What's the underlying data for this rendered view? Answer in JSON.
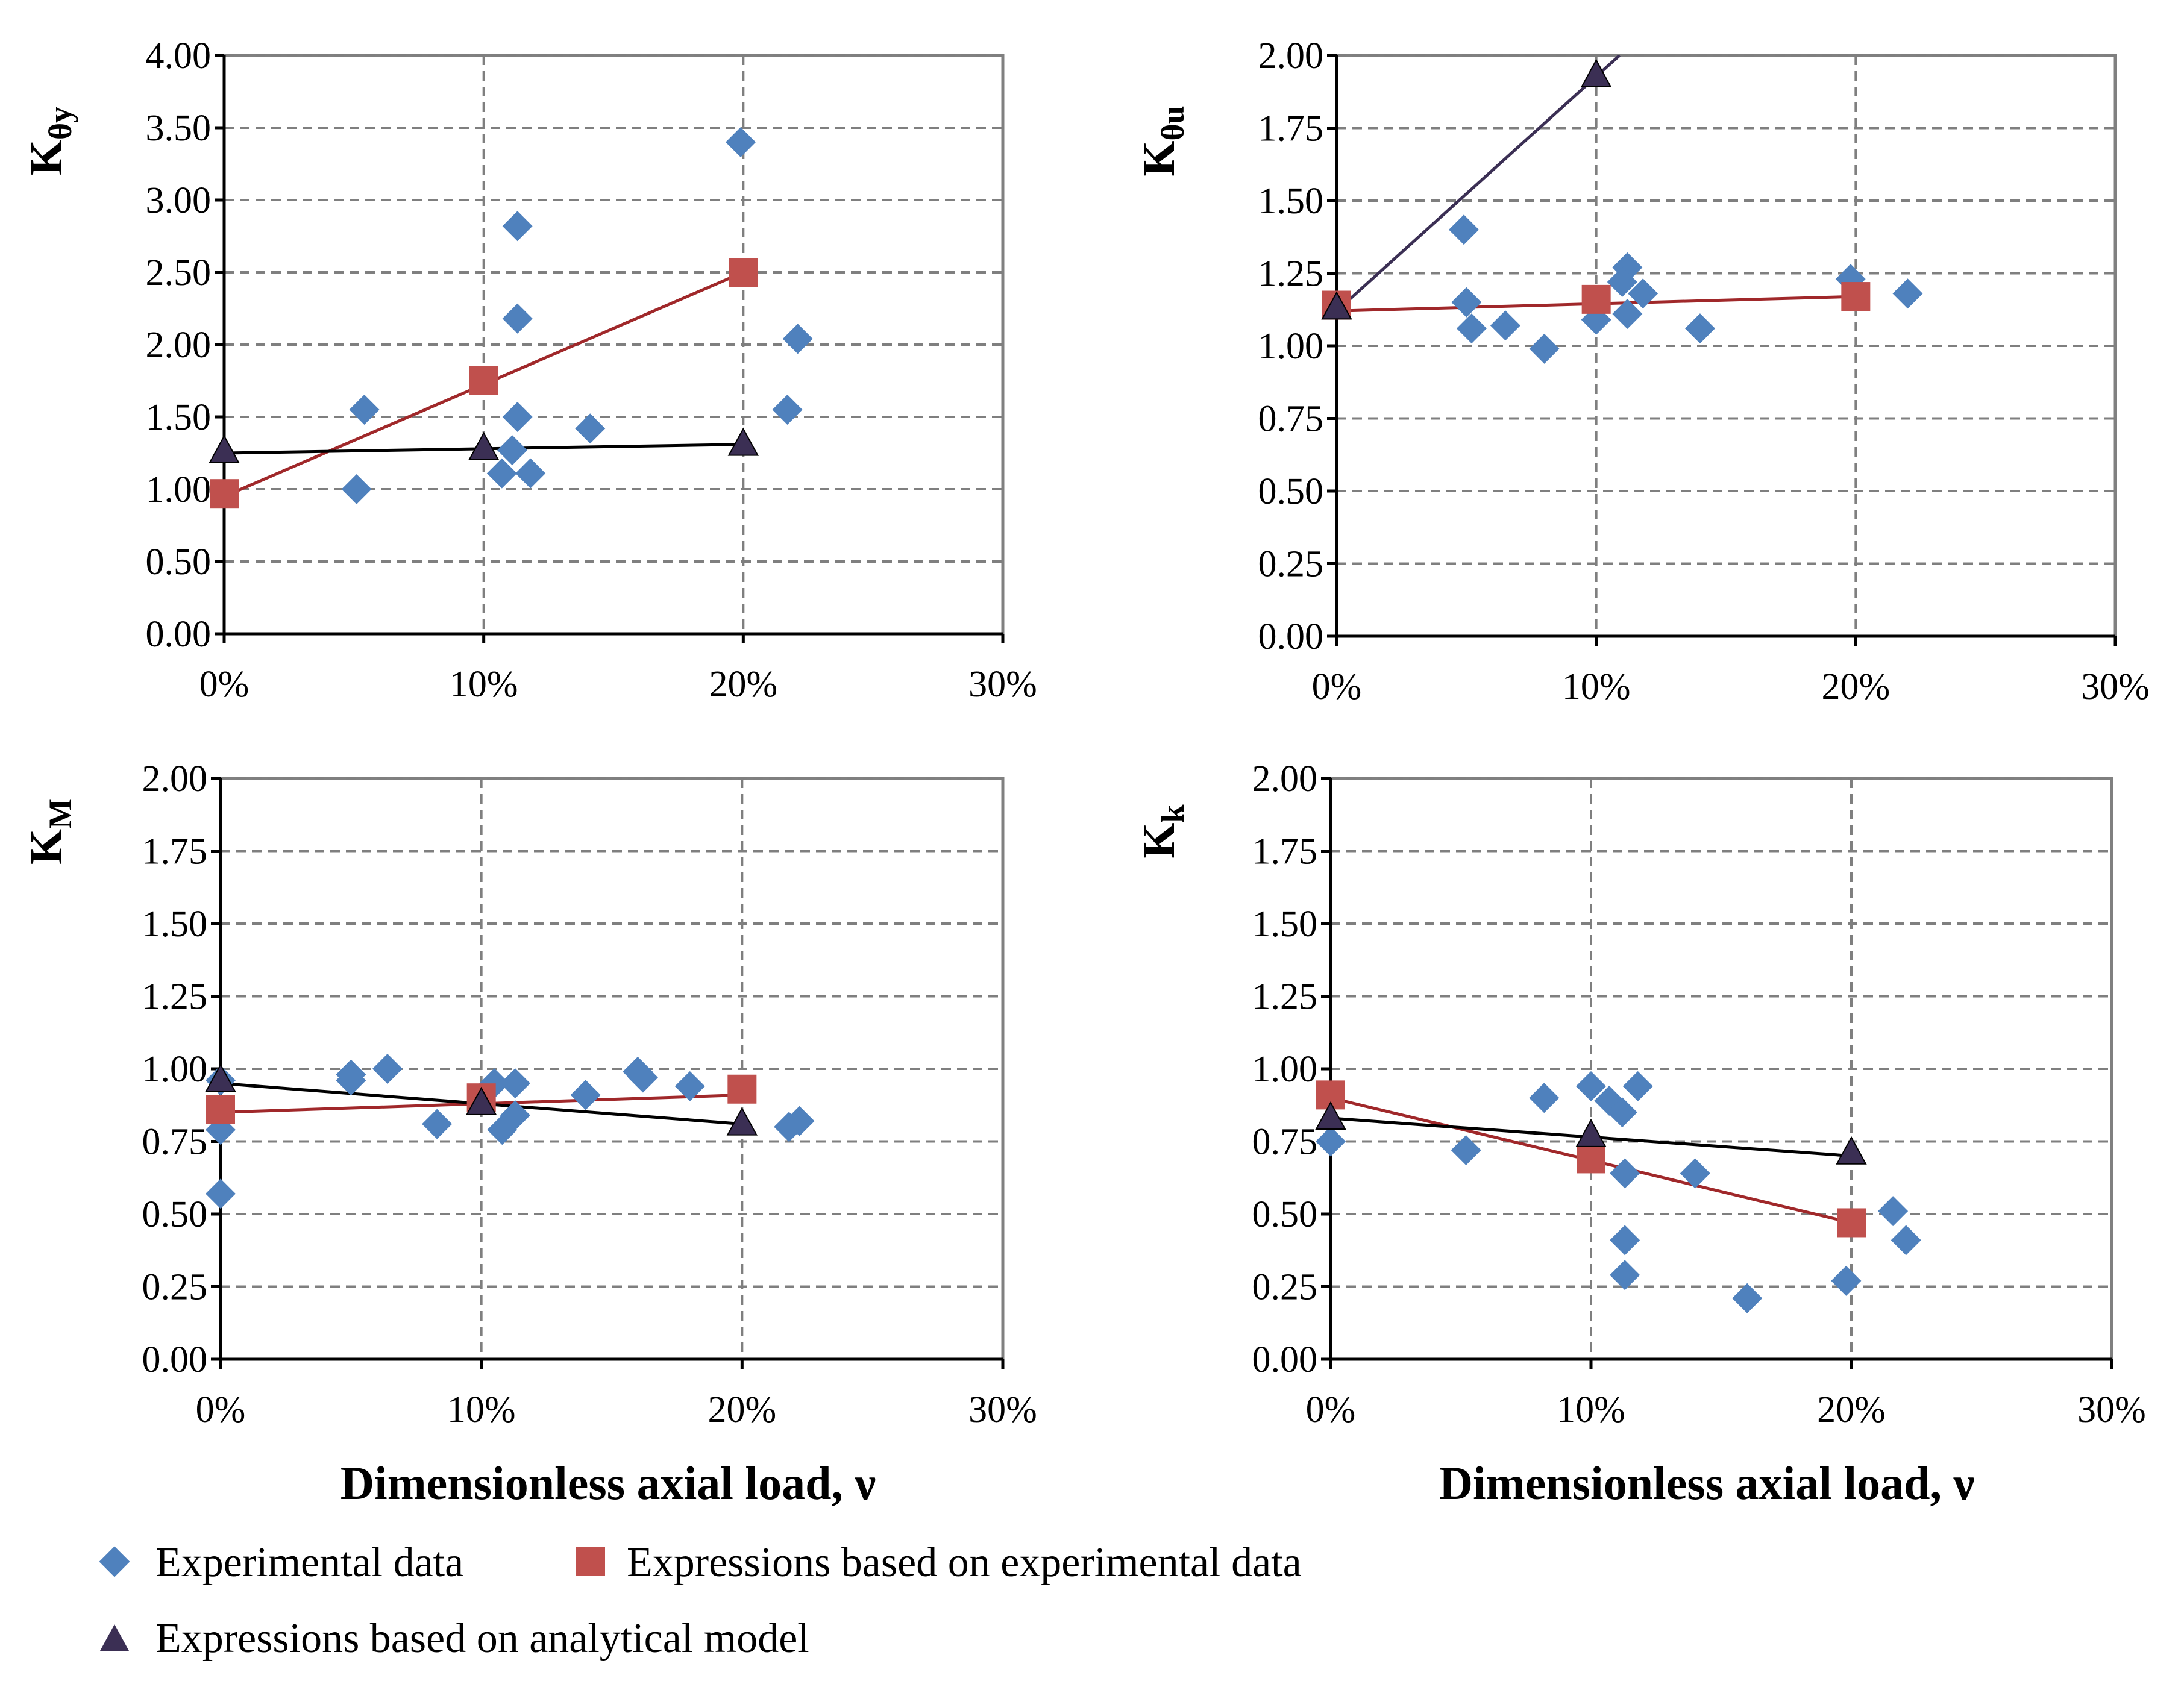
{
  "colors": {
    "experimental": "#4f81bd",
    "expr_experimental": "#c0504d",
    "expr_analytical": "#3b2f54",
    "line_experimental": "#a0282a",
    "line_analytical": "#000000"
  },
  "xlabel": "Dimensionless axial load, ν",
  "legend": {
    "experimental": "Experimental data",
    "expr_experimental": "Expressions based on experimental data",
    "expr_analytical": "Expressions based on analytical model"
  },
  "chart_data": [
    {
      "type": "scatter",
      "ylabel_main": "K",
      "ylabel_sub": "θy",
      "ylim": [
        0,
        4
      ],
      "ytick_values": [
        0,
        0.5,
        1,
        1.5,
        2,
        2.5,
        3,
        3.5,
        4
      ],
      "ytick_labels": [
        "0.00",
        "0.50",
        "1.00",
        "1.50",
        "2.00",
        "2.50",
        "3.00",
        "3.50",
        "4.00"
      ],
      "xlim": [
        0,
        0.3
      ],
      "xtick_values": [
        0,
        0.1,
        0.2,
        0.3
      ],
      "xtick_labels": [
        "0%",
        "10%",
        "20%",
        "30%"
      ],
      "experimental": [
        [
          0.054,
          1.55
        ],
        [
          0.051,
          1.0
        ],
        [
          0.113,
          2.82
        ],
        [
          0.113,
          2.18
        ],
        [
          0.113,
          1.5
        ],
        [
          0.111,
          1.27
        ],
        [
          0.107,
          1.11
        ],
        [
          0.118,
          1.11
        ],
        [
          0.141,
          1.42
        ],
        [
          0.199,
          3.4
        ],
        [
          0.221,
          2.04
        ],
        [
          0.217,
          1.55
        ]
      ],
      "expr_experimental": [
        [
          0.0,
          0.97
        ],
        [
          0.1,
          1.75
        ],
        [
          0.2,
          2.5
        ]
      ],
      "expr_experimental_line": [
        [
          0.0,
          0.95
        ],
        [
          0.2,
          2.5
        ]
      ],
      "expr_analytical": [
        [
          0.0,
          1.26
        ],
        [
          0.1,
          1.28
        ],
        [
          0.2,
          1.31
        ]
      ],
      "expr_analytical_line": [
        [
          0.0,
          1.25
        ],
        [
          0.2,
          1.31
        ]
      ]
    },
    {
      "type": "scatter",
      "ylabel_main": "K",
      "ylabel_sub": "θu",
      "ylim": [
        0,
        2
      ],
      "ytick_values": [
        0,
        0.25,
        0.5,
        0.75,
        1,
        1.25,
        1.5,
        1.75,
        2
      ],
      "ytick_labels": [
        "0.00",
        "0.25",
        "0.50",
        "0.75",
        "1.00",
        "1.25",
        "1.50",
        "1.75",
        "2.00"
      ],
      "xlim": [
        0,
        0.3
      ],
      "xtick_values": [
        0,
        0.1,
        0.2,
        0.3
      ],
      "xtick_labels": [
        "0%",
        "10%",
        "20%",
        "30%"
      ],
      "experimental": [
        [
          0.049,
          1.4
        ],
        [
          0.05,
          1.15
        ],
        [
          0.052,
          1.06
        ],
        [
          0.065,
          1.07
        ],
        [
          0.08,
          0.99
        ],
        [
          0.1,
          1.09
        ],
        [
          0.112,
          1.27
        ],
        [
          0.11,
          1.22
        ],
        [
          0.112,
          1.11
        ],
        [
          0.118,
          1.18
        ],
        [
          0.14,
          1.06
        ],
        [
          0.198,
          1.23
        ],
        [
          0.22,
          1.18
        ]
      ],
      "expr_experimental": [
        [
          0.0,
          1.14
        ],
        [
          0.1,
          1.16
        ],
        [
          0.2,
          1.17
        ]
      ],
      "expr_experimental_line": [
        [
          0.0,
          1.12
        ],
        [
          0.2,
          1.17
        ]
      ],
      "expr_analytical": [
        [
          0.0,
          1.13
        ],
        [
          0.1,
          1.93
        ]
      ],
      "expr_analytical_line": [
        [
          0.0,
          1.12
        ],
        [
          0.109,
          2.0
        ]
      ]
    },
    {
      "type": "scatter",
      "ylabel_main": "K",
      "ylabel_sub": "M",
      "ylim": [
        0,
        2
      ],
      "ytick_values": [
        0,
        0.25,
        0.5,
        0.75,
        1,
        1.25,
        1.5,
        1.75,
        2
      ],
      "ytick_labels": [
        "0.00",
        "0.25",
        "0.50",
        "0.75",
        "1.00",
        "1.25",
        "1.50",
        "1.75",
        "2.00"
      ],
      "xlim": [
        0,
        0.3
      ],
      "xtick_values": [
        0,
        0.1,
        0.2,
        0.3
      ],
      "xtick_labels": [
        "0%",
        "10%",
        "20%",
        "30%"
      ],
      "experimental": [
        [
          0.0,
          0.57
        ],
        [
          0.0,
          0.79
        ],
        [
          0.0,
          0.96
        ],
        [
          0.05,
          0.98
        ],
        [
          0.05,
          0.96
        ],
        [
          0.064,
          1.0
        ],
        [
          0.083,
          0.81
        ],
        [
          0.105,
          0.95
        ],
        [
          0.108,
          0.79
        ],
        [
          0.113,
          0.95
        ],
        [
          0.113,
          0.84
        ],
        [
          0.14,
          0.91
        ],
        [
          0.16,
          0.99
        ],
        [
          0.162,
          0.97
        ],
        [
          0.18,
          0.94
        ],
        [
          0.218,
          0.8
        ],
        [
          0.222,
          0.82
        ]
      ],
      "expr_experimental": [
        [
          0.0,
          0.86
        ],
        [
          0.1,
          0.9
        ],
        [
          0.2,
          0.93
        ]
      ],
      "expr_experimental_line": [
        [
          0.0,
          0.85
        ],
        [
          0.2,
          0.91
        ]
      ],
      "expr_analytical": [
        [
          0.0,
          0.96
        ],
        [
          0.1,
          0.88
        ],
        [
          0.2,
          0.81
        ]
      ],
      "expr_analytical_line": [
        [
          0.0,
          0.95
        ],
        [
          0.2,
          0.81
        ]
      ]
    },
    {
      "type": "scatter",
      "ylabel_main": "K",
      "ylabel_sub": "k",
      "ylim": [
        0,
        2
      ],
      "ytick_values": [
        0,
        0.25,
        0.5,
        0.75,
        1,
        1.25,
        1.5,
        1.75,
        2
      ],
      "ytick_labels": [
        "0.00",
        "0.25",
        "0.50",
        "0.75",
        "1.00",
        "1.25",
        "1.50",
        "1.75",
        "2.00"
      ],
      "xlim": [
        0,
        0.3
      ],
      "xtick_values": [
        0,
        0.1,
        0.2,
        0.3
      ],
      "xtick_labels": [
        "0%",
        "10%",
        "20%",
        "30%"
      ],
      "experimental": [
        [
          0.0,
          0.75
        ],
        [
          0.052,
          0.72
        ],
        [
          0.082,
          0.9
        ],
        [
          0.1,
          0.94
        ],
        [
          0.107,
          0.89
        ],
        [
          0.112,
          0.85
        ],
        [
          0.113,
          0.64
        ],
        [
          0.118,
          0.94
        ],
        [
          0.113,
          0.41
        ],
        [
          0.113,
          0.29
        ],
        [
          0.14,
          0.64
        ],
        [
          0.16,
          0.21
        ],
        [
          0.198,
          0.27
        ],
        [
          0.216,
          0.51
        ],
        [
          0.221,
          0.41
        ]
      ],
      "expr_experimental": [
        [
          0.0,
          0.91
        ],
        [
          0.1,
          0.69
        ],
        [
          0.2,
          0.47
        ]
      ],
      "expr_experimental_line": [
        [
          0.0,
          0.9
        ],
        [
          0.2,
          0.47
        ]
      ],
      "expr_analytical": [
        [
          0.0,
          0.83
        ],
        [
          0.1,
          0.77
        ],
        [
          0.2,
          0.71
        ]
      ],
      "expr_analytical_line": [
        [
          0.0,
          0.83
        ],
        [
          0.2,
          0.7
        ]
      ]
    }
  ]
}
